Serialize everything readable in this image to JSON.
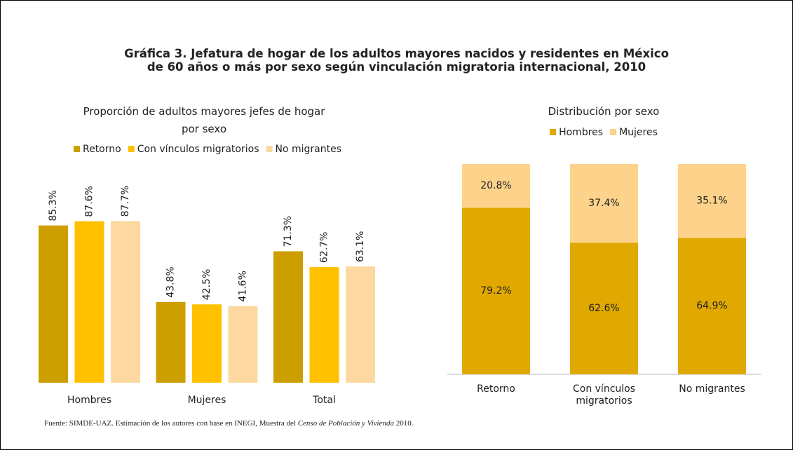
{
  "title": [
    "Gráfica 3. Jefatura de hogar de los adultos mayores nacidos y residentes en México",
    "de 60 años o más por sexo según vinculación migratoria internacional, 2010"
  ],
  "chart_data": [
    {
      "type": "bar",
      "title": "Proporción de adultos mayores jefes de hogar por sexo",
      "categories": [
        "Hombres",
        "Mujeres",
        "Total"
      ],
      "series": [
        {
          "name": "Retorno",
          "color": "#cc9e00",
          "values": [
            85.3,
            43.8,
            71.3
          ],
          "value_labels": [
            "85.3%",
            "43.8%",
            "71.3%"
          ]
        },
        {
          "name": "Con vínculos migratorios",
          "color": "#ffc000",
          "values": [
            87.6,
            42.5,
            62.7
          ],
          "value_labels": [
            "87.6%",
            "42.5%",
            "62.7%"
          ]
        },
        {
          "name": "No migrantes",
          "color": "#fdd9a1",
          "values": [
            87.7,
            41.6,
            63.1
          ],
          "value_labels": [
            "87.7%",
            "41.6%",
            "63.1%"
          ]
        }
      ]
    },
    {
      "type": "stacked_bar",
      "title": "Distribución por sexo",
      "categories": [
        "Retorno",
        "Con vínculos migratorios",
        "No migrantes"
      ],
      "series": [
        {
          "name": "Hombres",
          "color": "#e0a800",
          "values": [
            79.2,
            62.6,
            64.9
          ],
          "value_labels": [
            "79.2%",
            "62.6%",
            "64.9%"
          ]
        },
        {
          "name": "Mujeres",
          "color": "#fdd28a",
          "values": [
            20.8,
            37.4,
            35.1
          ],
          "value_labels": [
            "20.8%",
            "37.4%",
            "35.1%"
          ]
        }
      ]
    }
  ],
  "source": {
    "text": "Fuente: SIMDE-UAZ. Estimación de los autores con base en INEGI, Muestra del ",
    "italic": "Censo de Población y Vivienda",
    "end": " 2010."
  }
}
